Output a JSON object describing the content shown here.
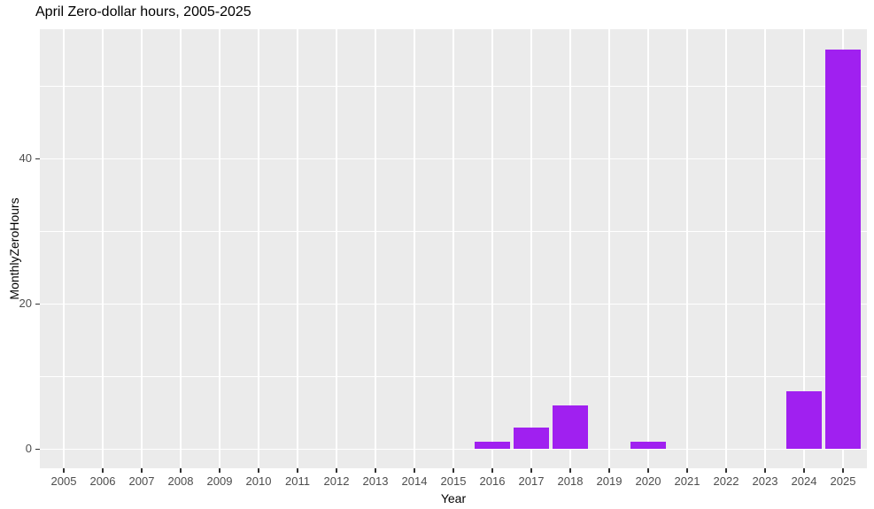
{
  "title": "April Zero-dollar hours, 2005-2025",
  "chart_data": {
    "type": "bar",
    "title": "April Zero-dollar hours, 2005-2025",
    "xlabel": "Year",
    "ylabel": "MonthlyZeroHours",
    "categories": [
      "2005",
      "2006",
      "2007",
      "2008",
      "2009",
      "2010",
      "2011",
      "2012",
      "2013",
      "2014",
      "2015",
      "2016",
      "2017",
      "2018",
      "2019",
      "2020",
      "2021",
      "2022",
      "2023",
      "2024",
      "2025"
    ],
    "values": [
      0,
      0,
      0,
      0,
      0,
      0,
      0,
      0,
      0,
      0,
      0,
      1,
      3,
      6,
      0,
      1,
      0,
      0,
      0,
      8,
      55
    ],
    "ylim": [
      -2.75,
      57.75
    ],
    "yticks_major": [
      0,
      20,
      40
    ],
    "yticks_minor": [
      10,
      30,
      50
    ],
    "grid": "on",
    "legend": "none",
    "colors": {
      "bar": "#A020F0",
      "panel_bg": "#EBEBEB",
      "grid": "#FFFFFF",
      "tick_text": "#4D4D4D",
      "tick_mark": "#333333",
      "title_text": "#000000",
      "background": "#FFFFFF"
    }
  }
}
